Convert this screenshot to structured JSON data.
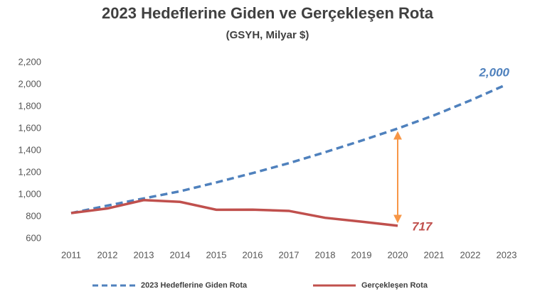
{
  "chart_data": {
    "type": "line",
    "title": "2023 Hedeflerine Giden ve Gerçekleşen Rota",
    "subtitle": "(GSYH, Milyar $)",
    "categories": [
      "2011",
      "2012",
      "2013",
      "2014",
      "2015",
      "2016",
      "2017",
      "2018",
      "2019",
      "2020",
      "2021",
      "2022",
      "2023"
    ],
    "series": [
      {
        "name": "2023 Hedeflerine Giden Rota",
        "color": "#4f81bd",
        "dashed": true,
        "values": [
          832,
          900,
          965,
          1030,
          1110,
          1195,
          1285,
          1385,
          1490,
          1600,
          1720,
          1855,
          2000
        ],
        "value_labels": [
          null,
          null,
          null,
          null,
          null,
          null,
          null,
          null,
          null,
          null,
          null,
          null,
          "2,000"
        ]
      },
      {
        "name": "Gerçekleşen Rota",
        "color": "#c0504d",
        "dashed": false,
        "values": [
          832,
          874,
          950,
          934,
          862,
          863,
          852,
          789,
          754,
          717,
          null,
          null,
          null
        ],
        "label_points": [
          9
        ]
      }
    ],
    "ylim": [
      600,
      2200
    ],
    "yticks": [
      600,
      800,
      {
        "value": 1000,
        "label": "1,000"
      },
      {
        "value": 1200,
        "label": "1,200"
      },
      {
        "value": 1400,
        "label": "1,400"
      },
      {
        "value": 1600,
        "label": "1,600"
      },
      {
        "value": 1800,
        "label": "1,800"
      },
      {
        "value": 2000,
        "label": "2,000"
      },
      {
        "value": 2200,
        "label": "2,200"
      }
    ],
    "grid": false,
    "legend": "bottom"
  }
}
